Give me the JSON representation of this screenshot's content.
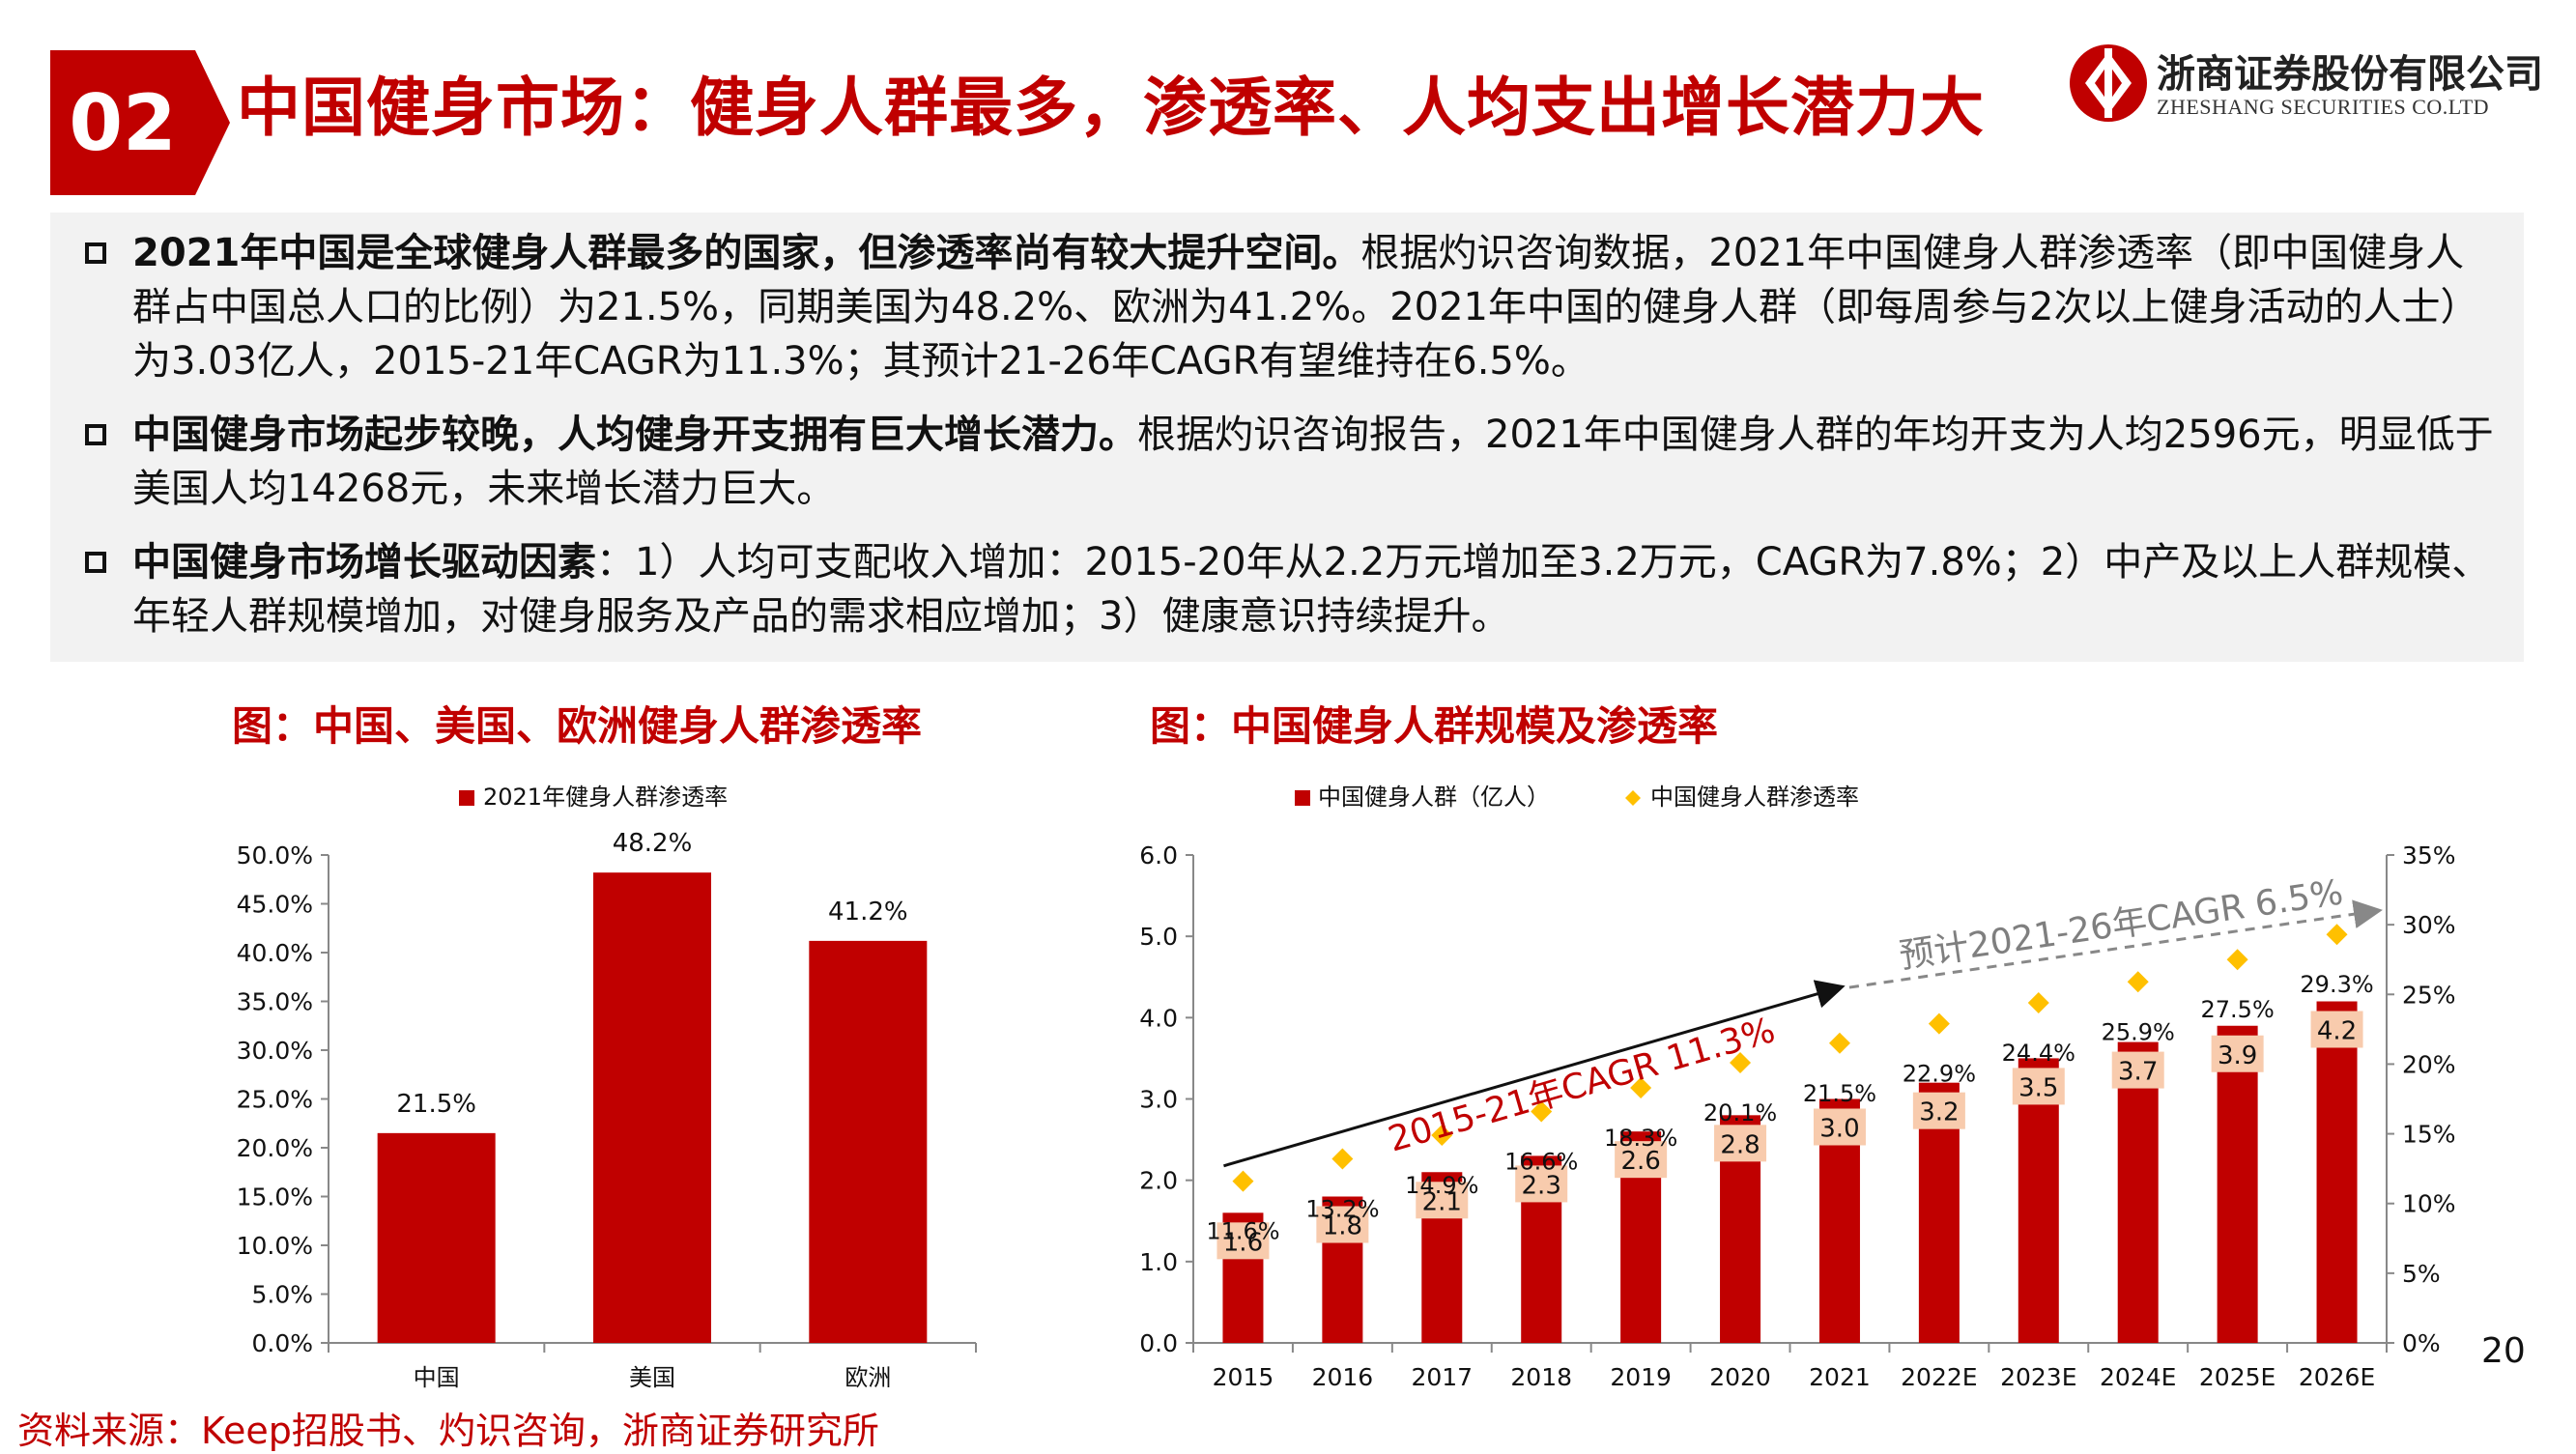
{
  "header": {
    "section_number": "02",
    "title": "中国健身市场：健身人群最多，渗透率、人均支出增长潜力大",
    "logo_cn": "浙商证券股份有限公司",
    "logo_en": "ZHESHANG SECURITIES CO.LTD",
    "brand_color": "#c00000"
  },
  "bullets": [
    {
      "bold": "2021年中国是全球健身人群最多的国家，但渗透率尚有较大提升空间。",
      "text": "根据灼识咨询数据，2021年中国健身人群渗透率（即中国健身人群占中国总人口的比例）为21.5%，同期美国为48.2%、欧洲为41.2%。2021年中国的健身人群（即每周参与2次以上健身活动的人士）为3.03亿人，2015-21年CAGR为11.3%；其预计21-26年CAGR有望维持在6.5%。"
    },
    {
      "bold": "中国健身市场起步较晚，人均健身开支拥有巨大增长潜力。",
      "text": "根据灼识咨询报告，2021年中国健身人群的年均开支为人均2596元，明显低于美国人均14268元，未来增长潜力巨大。"
    },
    {
      "bold": "中国健身市场增长驱动因素",
      "text": "：1）人均可支配收入增加：2015-20年从2.2万元增加至3.2万元，CAGR为7.8%；2）中产及以上人群规模、年轻人群规模增加，对健身服务及产品的需求相应增加；3）健康意识持续提升。"
    }
  ],
  "figure_left": {
    "title": "图：中国、美国、欧洲健身人群渗透率"
  },
  "figure_right": {
    "title": "图：中国健身人群规模及渗透率"
  },
  "chart_data": [
    {
      "type": "bar",
      "categories": [
        "中国",
        "美国",
        "欧洲"
      ],
      "series": [
        {
          "name": "2021年健身人群渗透率",
          "values": [
            21.5,
            48.2,
            41.2
          ]
        }
      ],
      "data_labels": [
        "21.5%",
        "48.2%",
        "41.2%"
      ],
      "ylim": [
        0,
        50
      ],
      "yticks": [
        "0.0%",
        "5.0%",
        "10.0%",
        "15.0%",
        "20.0%",
        "25.0%",
        "30.0%",
        "35.0%",
        "40.0%",
        "45.0%",
        "50.0%"
      ],
      "legend": "top",
      "grid": false,
      "bar_color": "#c00000"
    },
    {
      "type": "bar",
      "categories": [
        "2015",
        "2016",
        "2017",
        "2018",
        "2019",
        "2020",
        "2021",
        "2022E",
        "2023E",
        "2024E",
        "2025E",
        "2026E"
      ],
      "series": [
        {
          "name": "中国健身人群（亿人）",
          "type": "bar",
          "axis": "left",
          "values": [
            1.6,
            1.8,
            2.1,
            2.3,
            2.6,
            2.8,
            3.0,
            3.2,
            3.5,
            3.7,
            3.9,
            4.2
          ],
          "labels": [
            "1.6",
            "1.8",
            "2.1",
            "2.3",
            "2.6",
            "2.8",
            "3.0",
            "3.2",
            "3.5",
            "3.7",
            "3.9",
            "4.2"
          ]
        },
        {
          "name": "中国健身人群渗透率",
          "type": "scatter",
          "axis": "right",
          "values": [
            11.6,
            13.2,
            14.9,
            16.6,
            18.3,
            20.1,
            21.5,
            22.9,
            24.4,
            25.9,
            27.5,
            29.3
          ],
          "labels": [
            "11.6%",
            "13.2%",
            "14.9%",
            "16.6%",
            "18.3%",
            "20.1%",
            "21.5%",
            "22.9%",
            "24.4%",
            "25.9%",
            "27.5%",
            "29.3%"
          ]
        }
      ],
      "ylim_left": [
        0,
        6
      ],
      "yticks_left": [
        "0.0",
        "1.0",
        "2.0",
        "3.0",
        "4.0",
        "5.0",
        "6.0"
      ],
      "ylim_right": [
        0,
        35
      ],
      "yticks_right": [
        "0%",
        "5%",
        "10%",
        "15%",
        "20%",
        "25%",
        "30%",
        "35%"
      ],
      "annotations": [
        "2015-21年CAGR 11.3%",
        "预计2021-26年CAGR 6.5%"
      ],
      "legend": "top",
      "grid": false,
      "bar_color": "#c00000",
      "marker_color": "#ffc000",
      "label_box_color": "#f8cbad"
    }
  ],
  "source": "资料来源：Keep招股书、灼识咨询，浙商证券研究所",
  "page_number": "20"
}
